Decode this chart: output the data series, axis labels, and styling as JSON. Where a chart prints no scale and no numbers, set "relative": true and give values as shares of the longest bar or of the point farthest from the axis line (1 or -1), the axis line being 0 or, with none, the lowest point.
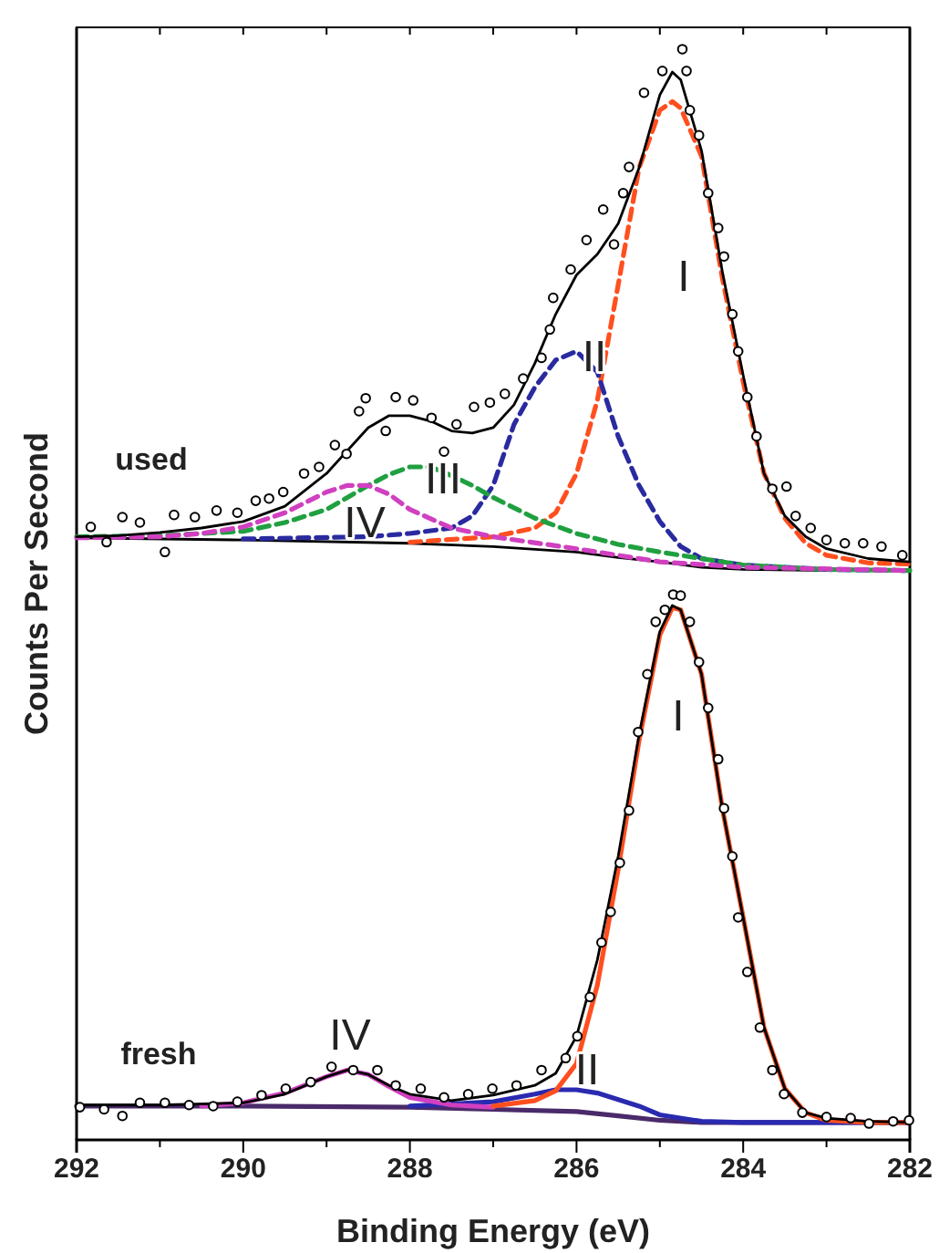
{
  "chart_data": {
    "type": "line",
    "relative": true,
    "xlabel": "Binding Energy (eV)",
    "ylabel": "Counts Per Second",
    "xlim": [
      292,
      282
    ],
    "xticks": [
      292,
      {
        "value": 291,
        "label": null
      },
      290,
      {
        "value": 289,
        "label": null
      },
      288,
      {
        "value": 287,
        "label": null
      },
      286,
      {
        "value": 285,
        "label": null
      },
      284,
      {
        "value": 283,
        "label": null
      },
      282
    ],
    "series": [
      {
        "type": "scatter",
        "marker": "circle",
        "color": "#000000",
        "x": [
          291.83,
          291.64,
          291.45,
          291.24,
          290.94,
          290.83,
          290.58,
          290.32,
          290.07,
          289.85,
          289.69,
          289.52,
          289.27,
          289.09,
          288.9,
          288.76,
          288.61,
          288.53,
          288.29,
          288.17,
          287.96,
          287.74,
          287.59,
          287.44,
          287.23,
          287.04,
          286.86,
          286.64,
          286.42,
          286.32,
          286.28,
          286.07,
          285.88,
          285.68,
          285.55,
          285.44,
          285.37,
          285.19,
          284.97,
          284.73,
          284.68,
          284.64,
          284.53,
          284.42,
          284.3,
          284.23,
          284.13,
          284.06,
          283.95,
          283.84,
          283.65,
          283.48,
          283.37,
          283.19,
          283.0,
          282.78,
          282.56,
          282.34,
          282.09
        ],
        "values": [
          0.562,
          0.548,
          0.571,
          0.566,
          0.539,
          0.573,
          0.571,
          0.577,
          0.575,
          0.586,
          0.588,
          0.594,
          0.611,
          0.617,
          0.637,
          0.629,
          0.668,
          0.68,
          0.65,
          0.681,
          0.678,
          0.662,
          0.631,
          0.656,
          0.672,
          0.676,
          0.684,
          0.698,
          0.717,
          0.743,
          0.772,
          0.798,
          0.825,
          0.853,
          0.821,
          0.868,
          0.892,
          0.96,
          0.98,
          1.0,
          0.98,
          0.944,
          0.921,
          0.868,
          0.836,
          0.81,
          0.757,
          0.723,
          0.681,
          0.645,
          0.597,
          0.599,
          0.572,
          0.561,
          0.55,
          0.547,
          0.547,
          0.544,
          0.536
        ]
      },
      {
        "line_style": "solid",
        "color": "#000000",
        "x": [
          292,
          290,
          288,
          287,
          286,
          285.5,
          285,
          284.5,
          284,
          283,
          282
        ],
        "values": [
          0.552,
          0.55,
          0.547,
          0.544,
          0.539,
          0.534,
          0.53,
          0.525,
          0.523,
          0.522,
          0.522
        ]
      },
      {
        "line_style": "dashed",
        "color": "#ff4f1f",
        "x": [
          288,
          287,
          286.5,
          286.25,
          286,
          285.75,
          285.5,
          285.25,
          285,
          284.85,
          284.75,
          284.5,
          284.25,
          284,
          283.75,
          283.5,
          283.25,
          283,
          282.5,
          282
        ],
        "values": [
          0.548,
          0.553,
          0.561,
          0.575,
          0.611,
          0.678,
          0.784,
          0.891,
          0.944,
          0.952,
          0.946,
          0.902,
          0.79,
          0.695,
          0.611,
          0.57,
          0.547,
          0.536,
          0.529,
          0.528
        ]
      },
      {
        "line_style": "dashed",
        "color": "#2a2aa0",
        "x": [
          290,
          288.5,
          288,
          287.5,
          287.25,
          287,
          286.75,
          286.5,
          286.25,
          286,
          285.75,
          285.5,
          285.25,
          285,
          284.75,
          284.5,
          284,
          283,
          282
        ],
        "values": [
          0.551,
          0.553,
          0.556,
          0.561,
          0.572,
          0.6,
          0.656,
          0.69,
          0.715,
          0.723,
          0.704,
          0.645,
          0.6,
          0.567,
          0.544,
          0.533,
          0.527,
          0.523,
          0.522
        ]
      },
      {
        "line_style": "dashed",
        "color": "#20a040",
        "x": [
          292,
          291,
          290,
          289.5,
          289,
          288.5,
          288.25,
          288,
          287.75,
          287.5,
          287.25,
          287,
          286.5,
          286,
          285.5,
          285,
          284,
          283,
          282
        ],
        "values": [
          0.553,
          0.554,
          0.558,
          0.566,
          0.578,
          0.6,
          0.61,
          0.617,
          0.617,
          0.609,
          0.6,
          0.589,
          0.57,
          0.556,
          0.546,
          0.539,
          0.527,
          0.523,
          0.522
        ]
      },
      {
        "line_style": "dashed",
        "color": "#d040c0",
        "x": [
          292,
          291,
          290.5,
          290,
          289.5,
          289,
          288.75,
          288.5,
          288.25,
          288,
          287.5,
          287,
          286,
          285,
          284,
          282
        ],
        "values": [
          0.552,
          0.553,
          0.556,
          0.562,
          0.575,
          0.594,
          0.6,
          0.6,
          0.592,
          0.578,
          0.561,
          0.553,
          0.542,
          0.53,
          0.525,
          0.522
        ]
      },
      {
        "line_style": "solid",
        "color": "#000000",
        "x": [
          292,
          291.5,
          291,
          290.5,
          290,
          289.5,
          289,
          288.5,
          288.25,
          288,
          287.75,
          287.5,
          287.25,
          287,
          286.75,
          286.5,
          286.25,
          286,
          285.75,
          285.5,
          285.25,
          285,
          284.85,
          284.75,
          284.5,
          284.25,
          284,
          283.75,
          283.5,
          283.25,
          283,
          282.5,
          282
        ],
        "values": [
          0.553,
          0.554,
          0.557,
          0.561,
          0.567,
          0.581,
          0.611,
          0.653,
          0.664,
          0.664,
          0.659,
          0.65,
          0.648,
          0.653,
          0.674,
          0.712,
          0.757,
          0.793,
          0.812,
          0.84,
          0.891,
          0.958,
          0.979,
          0.972,
          0.907,
          0.796,
          0.701,
          0.611,
          0.572,
          0.553,
          0.542,
          0.533,
          0.53
        ]
      },
      {
        "type": "scatter",
        "marker": "circle",
        "color": "#000000",
        "x": [
          291.96,
          291.67,
          291.45,
          291.24,
          290.94,
          290.65,
          290.36,
          290.07,
          289.78,
          289.49,
          289.19,
          288.94,
          288.68,
          288.39,
          288.17,
          287.87,
          287.59,
          287.3,
          287.01,
          286.72,
          286.42,
          286.13,
          285.99,
          285.84,
          285.7,
          285.59,
          285.48,
          285.37,
          285.26,
          285.15,
          285.05,
          284.94,
          284.84,
          284.75,
          284.64,
          284.53,
          284.42,
          284.3,
          284.23,
          284.13,
          284.06,
          283.95,
          283.8,
          283.65,
          283.51,
          283.29,
          283.0,
          282.71,
          282.49,
          282.2,
          282.01
        ],
        "values": [
          0.03,
          0.028,
          0.022,
          0.034,
          0.034,
          0.032,
          0.031,
          0.035,
          0.041,
          0.047,
          0.053,
          0.067,
          0.064,
          0.064,
          0.05,
          0.047,
          0.039,
          0.042,
          0.047,
          0.05,
          0.064,
          0.075,
          0.095,
          0.131,
          0.181,
          0.209,
          0.254,
          0.302,
          0.374,
          0.427,
          0.475,
          0.486,
          0.5,
          0.499,
          0.475,
          0.438,
          0.396,
          0.349,
          0.304,
          0.26,
          0.204,
          0.154,
          0.103,
          0.064,
          0.042,
          0.025,
          0.021,
          0.02,
          0.015,
          0.017,
          0.018
        ]
      },
      {
        "line_style": "solid",
        "color": "#4a2a6a",
        "x": [
          292,
          290,
          288,
          287,
          286,
          285.5,
          285,
          284.5,
          284,
          283,
          282
        ],
        "values": [
          0.031,
          0.031,
          0.03,
          0.028,
          0.026,
          0.022,
          0.018,
          0.016,
          0.016,
          0.016,
          0.016
        ]
      },
      {
        "line_style": "solid",
        "color": "#2a2ab0",
        "x": [
          288,
          287,
          286.5,
          286.25,
          286,
          285.75,
          285.5,
          285.25,
          285,
          284.5,
          284,
          282
        ],
        "values": [
          0.031,
          0.035,
          0.042,
          0.046,
          0.046,
          0.043,
          0.037,
          0.031,
          0.023,
          0.017,
          0.016,
          0.016
        ]
      },
      {
        "line_style": "solid",
        "color": "#d040c0",
        "x": [
          290.5,
          290,
          289.5,
          289,
          288.75,
          288.5,
          288.25,
          288,
          287.5,
          287
        ],
        "values": [
          0.031,
          0.034,
          0.043,
          0.058,
          0.064,
          0.06,
          0.049,
          0.039,
          0.032,
          0.03
        ]
      },
      {
        "line_style": "solid",
        "color": "#ff4f1f",
        "x": [
          287,
          286.5,
          286.25,
          286,
          285.75,
          285.5,
          285.25,
          285,
          284.85,
          284.75,
          284.5,
          284.25,
          284,
          283.75,
          283.5,
          283.25,
          283,
          282.5,
          282
        ],
        "values": [
          0.031,
          0.036,
          0.045,
          0.07,
          0.142,
          0.248,
          0.366,
          0.463,
          0.488,
          0.486,
          0.427,
          0.304,
          0.204,
          0.103,
          0.047,
          0.025,
          0.018,
          0.016,
          0.016
        ]
      },
      {
        "line_style": "solid",
        "color": "#000000",
        "x": [
          292,
          291,
          290,
          289.5,
          289,
          288.75,
          288.5,
          288.25,
          288,
          287.5,
          287,
          286.5,
          286.25,
          286,
          285.75,
          285.5,
          285.25,
          285,
          284.85,
          284.75,
          284.5,
          284.25,
          284,
          283.75,
          283.5,
          283.25,
          283,
          282.5,
          282
        ],
        "values": [
          0.032,
          0.032,
          0.034,
          0.042,
          0.058,
          0.064,
          0.06,
          0.05,
          0.042,
          0.036,
          0.041,
          0.05,
          0.061,
          0.095,
          0.165,
          0.26,
          0.371,
          0.466,
          0.49,
          0.486,
          0.427,
          0.304,
          0.204,
          0.103,
          0.047,
          0.025,
          0.02,
          0.017,
          0.016
        ]
      }
    ],
    "annotations": [
      "used",
      "I",
      "II",
      "III",
      "IV",
      "fresh",
      "I",
      "II",
      "IV"
    ]
  }
}
